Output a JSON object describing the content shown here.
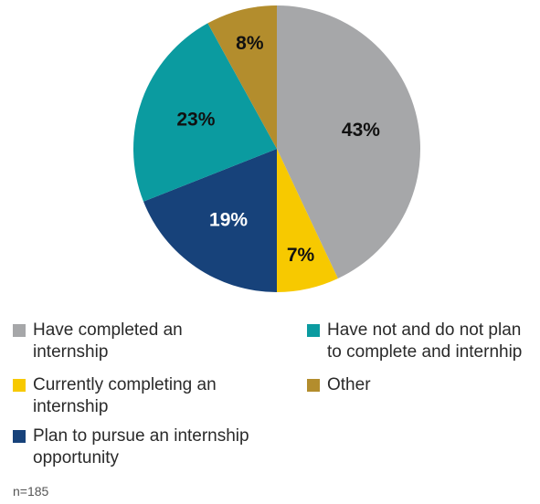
{
  "chart_data": {
    "type": "pie",
    "slices": [
      {
        "label": "Have completed an internship",
        "value": 43,
        "display": "43%",
        "color": "#a6a7a9",
        "text_color": "#111111"
      },
      {
        "label": "Currently completing an internship",
        "value": 7,
        "display": "7%",
        "color": "#f7c900",
        "text_color": "#111111"
      },
      {
        "label": "Plan to pursue an internship opportunity",
        "value": 19,
        "display": "19%",
        "color": "#17427a",
        "text_color": "#ffffff"
      },
      {
        "label": "Have not and do not plan to complete and internhip",
        "value": 23,
        "display": "23%",
        "color": "#0b9ba0",
        "text_color": "#111111"
      },
      {
        "label": "Other",
        "value": 8,
        "display": "8%",
        "color": "#b38d2d",
        "text_color": "#111111"
      }
    ],
    "start_angle_deg": 0,
    "direction": "clockwise",
    "legend_placement": "bottom"
  },
  "legend": [
    {
      "label": "Have completed an internship",
      "color": "#a6a7a9"
    },
    {
      "label": "Currently completing an internship",
      "color": "#f7c900"
    },
    {
      "label": "Plan to pursue an internship opportunity",
      "color": "#17427a"
    },
    {
      "label": "Have not and do not plan to complete and internhip",
      "color": "#0b9ba0"
    },
    {
      "label": "Other",
      "color": "#b38d2d"
    }
  ],
  "note": "n=185"
}
